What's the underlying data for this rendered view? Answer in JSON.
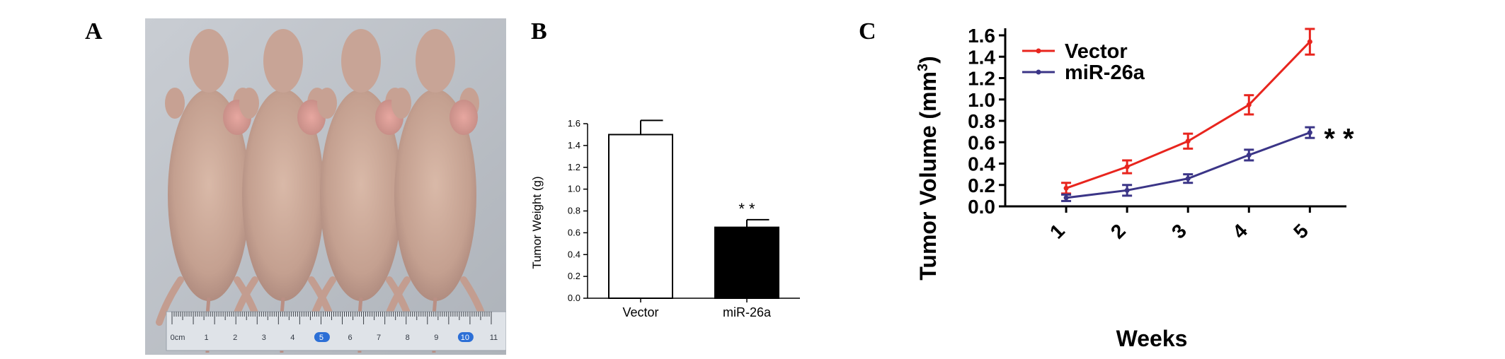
{
  "panels": {
    "a": "A",
    "b": "B",
    "c": "C"
  },
  "photo": {
    "ruler_labels": [
      "0cm",
      "1",
      "2",
      "3",
      "4",
      "5",
      "6",
      "7",
      "8",
      "9",
      "10",
      "11"
    ]
  },
  "chart_data": [
    {
      "type": "bar",
      "categories": [
        "Vector",
        "miR-26a"
      ],
      "values": [
        1.5,
        0.65
      ],
      "errors": [
        0.13,
        0.07
      ],
      "fill_colors": [
        "#ffffff",
        "#000000"
      ],
      "ylabel": "Tumor Weight (g)",
      "xlabel": "",
      "ylim": [
        0,
        1.6
      ],
      "yticks": [
        "0.0",
        "0.2",
        "0.4",
        "0.6",
        "0.8",
        "1.0",
        "1.2",
        "1.4",
        "1.6"
      ],
      "annotations": [
        {
          "category": "miR-26a",
          "text": "* *"
        }
      ]
    },
    {
      "type": "line",
      "x": [
        1,
        2,
        3,
        4,
        5
      ],
      "xtick_labels": [
        "1",
        "2",
        "3",
        "4",
        "5"
      ],
      "series": [
        {
          "name": "Vector",
          "color": "#e8251e",
          "values": [
            0.17,
            0.37,
            0.61,
            0.95,
            1.54
          ],
          "errors": [
            0.05,
            0.06,
            0.07,
            0.09,
            0.12
          ]
        },
        {
          "name": "miR-26a",
          "color": "#3b3587",
          "values": [
            0.08,
            0.15,
            0.26,
            0.48,
            0.69
          ],
          "errors": [
            0.03,
            0.05,
            0.04,
            0.05,
            0.05
          ]
        }
      ],
      "xlabel": "Weeks",
      "ylabel": "Tumor Volume  (mm",
      "ylabel_superscript": "3",
      "ylabel_suffix": ")",
      "ylim": [
        0,
        1.6
      ],
      "yticks": [
        "0.0",
        "0.2",
        "0.4",
        "0.6",
        "0.8",
        "1.0",
        "1.2",
        "1.4",
        "1.6"
      ],
      "legend": "top-left",
      "annotations": [
        {
          "series": "miR-26a",
          "x": 5,
          "text": "* *"
        }
      ]
    }
  ]
}
